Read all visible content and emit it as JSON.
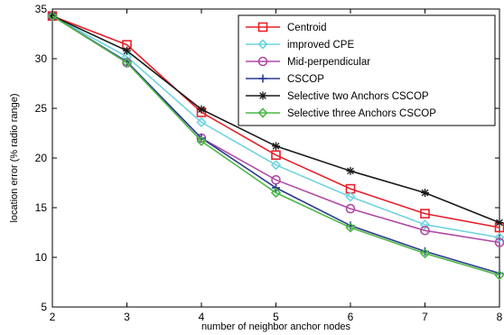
{
  "chart_data": {
    "type": "line",
    "xlabel": "number of neighbor anchor nodes",
    "ylabel": "location error (% radio range)",
    "xlim": [
      2,
      8
    ],
    "ylim": [
      5,
      35
    ],
    "xticks": [
      2,
      3,
      4,
      5,
      6,
      7,
      8
    ],
    "yticks": [
      5,
      10,
      15,
      20,
      25,
      30,
      35
    ],
    "grid": false,
    "legend_position": "top-right",
    "series": [
      {
        "name": "Centroid",
        "color": "#e8202a",
        "marker": "square",
        "x": [
          2,
          3,
          4,
          5,
          6,
          7,
          8
        ],
        "values": [
          34.3,
          31.4,
          24.6,
          20.3,
          16.9,
          14.4,
          13.0
        ]
      },
      {
        "name": "improved CPE",
        "color": "#6fd3e2",
        "marker": "diamond",
        "x": [
          2,
          3,
          4,
          5,
          6,
          7,
          8
        ],
        "values": [
          34.3,
          30.2,
          23.6,
          19.3,
          16.1,
          13.3,
          12.0
        ]
      },
      {
        "name": "Mid-perpendicular",
        "color": "#b04aa6",
        "marker": "circle",
        "x": [
          2,
          3,
          4,
          5,
          6,
          7,
          8
        ],
        "values": [
          34.3,
          29.6,
          22.0,
          17.8,
          14.9,
          12.7,
          11.5
        ]
      },
      {
        "name": "CSCOP",
        "color": "#2b3a8f",
        "marker": "plus",
        "x": [
          2,
          3,
          4,
          5,
          6,
          7,
          8
        ],
        "values": [
          34.3,
          29.7,
          22.0,
          17.0,
          13.2,
          10.6,
          8.4
        ]
      },
      {
        "name": "Selective two Anchors CSCOP",
        "color": "#1a1a1a",
        "marker": "star",
        "x": [
          2,
          3,
          4,
          5,
          6,
          7,
          8
        ],
        "values": [
          34.3,
          30.8,
          24.9,
          21.2,
          18.7,
          16.5,
          13.5
        ]
      },
      {
        "name": "Selective three Anchors CSCOP",
        "color": "#4cb847",
        "marker": "diamond",
        "x": [
          2,
          3,
          4,
          5,
          6,
          7,
          8
        ],
        "values": [
          34.3,
          29.6,
          21.7,
          16.5,
          13.0,
          10.4,
          8.2
        ]
      }
    ]
  }
}
